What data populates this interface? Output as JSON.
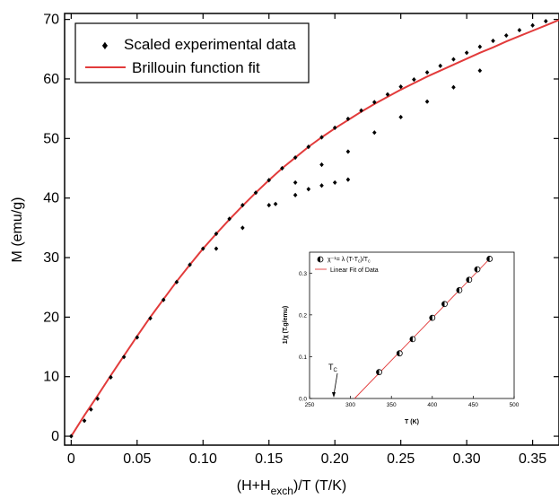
{
  "chart_data": [
    {
      "type": "scatter",
      "xlabel_main": "(H+H",
      "xlabel_sub": "exch",
      "xlabel_tail": ")/T (T/K)",
      "ylabel": "M (emu/g)",
      "xlim": [
        -0.005,
        0.37
      ],
      "ylim": [
        -1.5,
        71
      ],
      "xticks": [
        0,
        0.05,
        0.1,
        0.15,
        0.2,
        0.25,
        0.3,
        0.35
      ],
      "xtick_labels": [
        "0",
        "0.05",
        "0.10",
        "0.15",
        "0.20",
        "0.25",
        "0.30",
        "0.35"
      ],
      "yticks": [
        0,
        10,
        20,
        30,
        40,
        50,
        60,
        70
      ],
      "ytick_labels": [
        "0",
        "10",
        "20",
        "30",
        "40",
        "50",
        "60",
        "70"
      ],
      "legend": [
        "Scaled experimental data",
        "Brillouin function fit"
      ],
      "legend_position": "top-left",
      "colors": {
        "data": "#000000",
        "fit": "#e23b3b"
      },
      "series": [
        {
          "name": "Scaled experimental data",
          "kind": "points",
          "points": [
            [
              0.0,
              0.0
            ],
            [
              0.01,
              2.6
            ],
            [
              0.015,
              4.5
            ],
            [
              0.02,
              6.3
            ],
            [
              0.03,
              9.9
            ],
            [
              0.04,
              13.3
            ],
            [
              0.05,
              16.6
            ],
            [
              0.06,
              19.8
            ],
            [
              0.07,
              22.9
            ],
            [
              0.08,
              25.9
            ],
            [
              0.09,
              28.8
            ],
            [
              0.1,
              31.5
            ],
            [
              0.11,
              34.0
            ],
            [
              0.12,
              36.5
            ],
            [
              0.13,
              38.8
            ],
            [
              0.14,
              40.9
            ],
            [
              0.15,
              43.0
            ],
            [
              0.16,
              45.0
            ],
            [
              0.17,
              46.8
            ],
            [
              0.18,
              48.6
            ],
            [
              0.19,
              50.2
            ],
            [
              0.2,
              51.8
            ],
            [
              0.21,
              53.3
            ],
            [
              0.22,
              54.7
            ],
            [
              0.23,
              56.1
            ],
            [
              0.24,
              57.4
            ],
            [
              0.25,
              58.7
            ],
            [
              0.26,
              59.9
            ],
            [
              0.27,
              61.1
            ],
            [
              0.28,
              62.2
            ],
            [
              0.29,
              63.3
            ],
            [
              0.3,
              64.4
            ],
            [
              0.31,
              65.4
            ],
            [
              0.32,
              66.4
            ],
            [
              0.33,
              67.3
            ],
            [
              0.34,
              68.2
            ],
            [
              0.35,
              69.0
            ],
            [
              0.36,
              69.7
            ],
            [
              0.23,
              51.0
            ],
            [
              0.25,
              53.6
            ],
            [
              0.27,
              56.2
            ],
            [
              0.29,
              58.6
            ],
            [
              0.31,
              61.4
            ],
            [
              0.21,
              47.8
            ],
            [
              0.19,
              45.6
            ],
            [
              0.17,
              42.6
            ],
            [
              0.15,
              38.8
            ],
            [
              0.13,
              35.0
            ],
            [
              0.11,
              31.5
            ],
            [
              0.155,
              39.0
            ],
            [
              0.17,
              40.5
            ],
            [
              0.18,
              41.5
            ],
            [
              0.19,
              42.1
            ],
            [
              0.2,
              42.6
            ],
            [
              0.21,
              43.1
            ]
          ]
        },
        {
          "name": "Brillouin function fit",
          "kind": "line",
          "points": [
            [
              0.0,
              0.0
            ],
            [
              0.01,
              3.5
            ],
            [
              0.02,
              6.8
            ],
            [
              0.03,
              10.2
            ],
            [
              0.04,
              13.5
            ],
            [
              0.05,
              16.8
            ],
            [
              0.06,
              20.0
            ],
            [
              0.07,
              23.0
            ],
            [
              0.08,
              26.0
            ],
            [
              0.09,
              28.8
            ],
            [
              0.1,
              31.5
            ],
            [
              0.11,
              34.0
            ],
            [
              0.12,
              36.4
            ],
            [
              0.13,
              38.7
            ],
            [
              0.14,
              40.9
            ],
            [
              0.15,
              43.0
            ],
            [
              0.16,
              45.0
            ],
            [
              0.17,
              46.8
            ],
            [
              0.18,
              48.6
            ],
            [
              0.19,
              50.2
            ],
            [
              0.2,
              51.7
            ],
            [
              0.21,
              53.1
            ],
            [
              0.22,
              54.5
            ],
            [
              0.23,
              55.8
            ],
            [
              0.24,
              57.0
            ],
            [
              0.25,
              58.2
            ],
            [
              0.26,
              59.3
            ],
            [
              0.27,
              60.4
            ],
            [
              0.28,
              61.4
            ],
            [
              0.29,
              62.4
            ],
            [
              0.3,
              63.4
            ],
            [
              0.31,
              64.4
            ],
            [
              0.32,
              65.3
            ],
            [
              0.33,
              66.3
            ],
            [
              0.34,
              67.2
            ],
            [
              0.35,
              68.1
            ],
            [
              0.36,
              69.0
            ],
            [
              0.37,
              69.9
            ]
          ]
        }
      ]
    },
    {
      "type": "scatter",
      "xlabel": "T (K)",
      "ylabel_main": "1/χ (T.g/emu)",
      "xlim": [
        250,
        500
      ],
      "ylim": [
        0,
        0.35
      ],
      "xticks": [
        250,
        300,
        350,
        400,
        450,
        500
      ],
      "xtick_labels": [
        "250",
        "300",
        "350",
        "400",
        "450",
        "500"
      ],
      "yticks": [
        0.0,
        0.1,
        0.2,
        0.3
      ],
      "ytick_labels": [
        "0.0",
        "0.1",
        "0.2",
        "0.3"
      ],
      "legend_position": "top-left",
      "legend_points": "χ⁻¹= λ (T-T",
      "legend_points_tail": ")/T",
      "legend_fit": "Linear Fit of Data",
      "annotation": "T",
      "annotation_sub": "C",
      "colors": {
        "data": "#000000",
        "fit": "#e23b3b"
      },
      "series": [
        {
          "kind": "points",
          "points": [
            [
              335,
              0.063
            ],
            [
              360,
              0.108
            ],
            [
              376,
              0.142
            ],
            [
              400,
              0.193
            ],
            [
              415,
              0.226
            ],
            [
              433,
              0.259
            ],
            [
              445,
              0.284
            ],
            [
              455,
              0.309
            ],
            [
              470,
              0.334
            ]
          ]
        },
        {
          "kind": "line",
          "points": [
            [
              305,
              0.0
            ],
            [
              470,
              0.334
            ]
          ]
        }
      ]
    }
  ]
}
